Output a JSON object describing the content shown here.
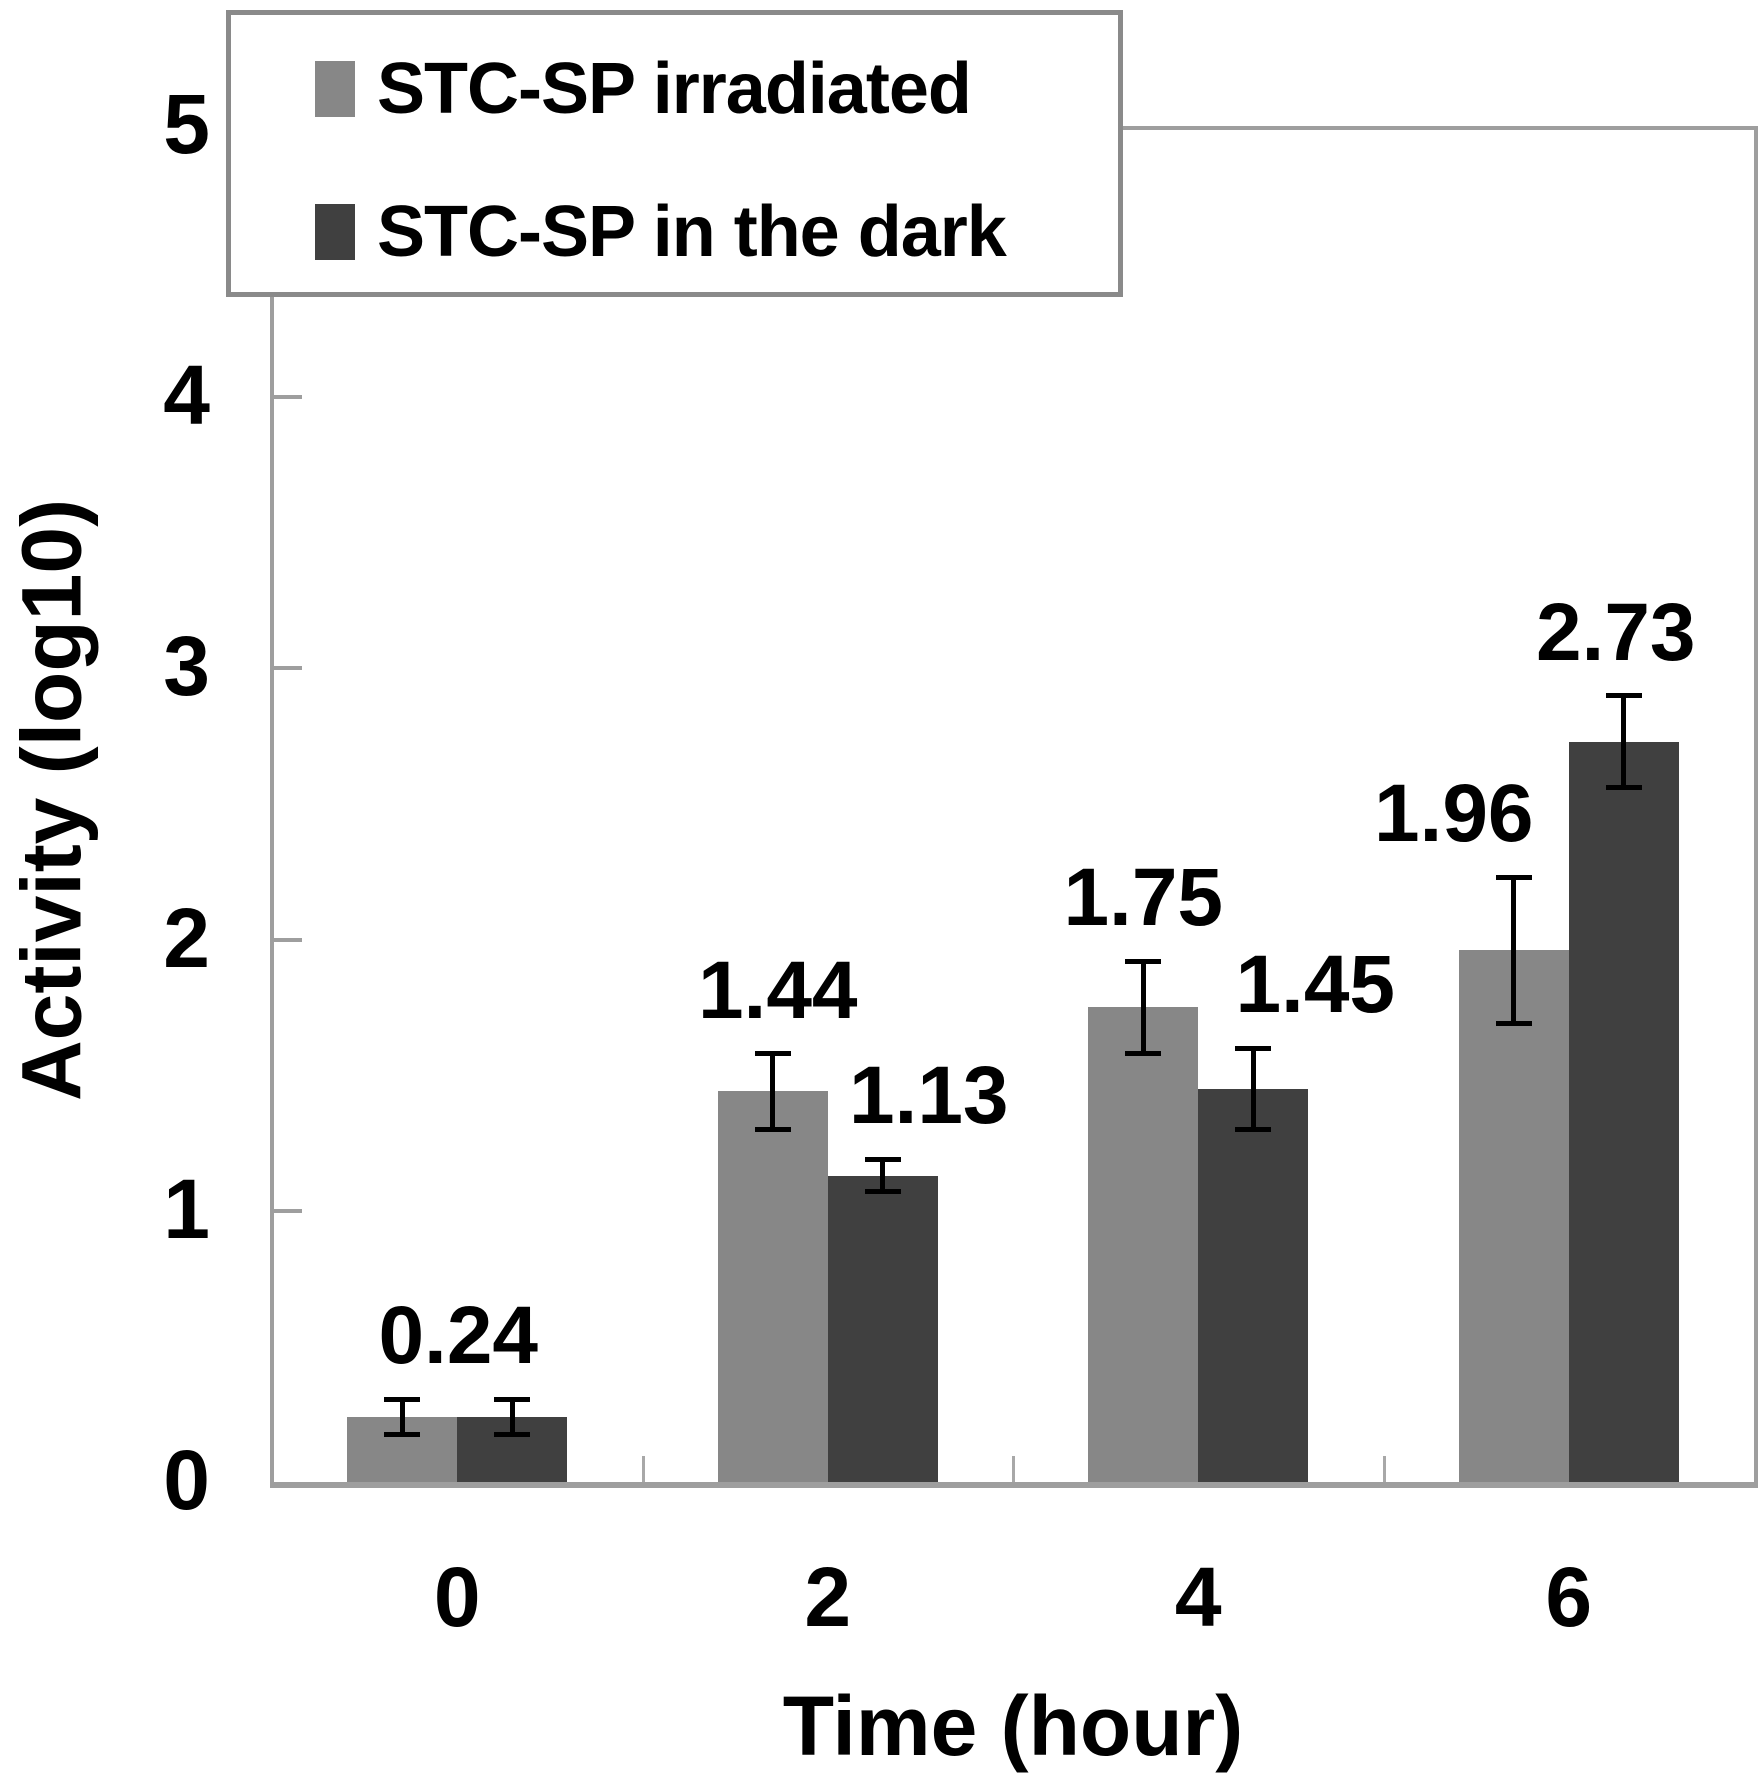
{
  "chart_data": {
    "type": "bar",
    "title": "",
    "xlabel": "Time (hour)",
    "ylabel": "Activity (log10)",
    "categories": [
      "0",
      "2",
      "4",
      "6"
    ],
    "ylim": [
      0,
      5
    ],
    "yticks": [
      0,
      1,
      2,
      3,
      4,
      5
    ],
    "grid": false,
    "legend_position": "top-left",
    "axis_color": "#9e9e9e",
    "series": [
      {
        "name": "STC-SP irradiated",
        "color": "#878787",
        "values": [
          0.24,
          1.44,
          1.75,
          1.96
        ],
        "errors": [
          0.065,
          0.14,
          0.17,
          0.27
        ],
        "labels": [
          "0.24",
          "1.44",
          "1.75",
          "1.96"
        ],
        "label_dx": [
          56,
          5,
          0,
          -60
        ]
      },
      {
        "name": "STC-SP in the dark",
        "color": "#404040",
        "values": [
          0.24,
          1.13,
          1.45,
          2.73
        ],
        "errors": [
          0.065,
          0.06,
          0.15,
          0.17
        ],
        "labels": [
          "",
          "1.13",
          "1.45",
          "2.73"
        ],
        "label_dx": [
          0,
          46,
          62,
          -8
        ]
      }
    ]
  },
  "legend": {
    "items": [
      {
        "label": "STC-SP irradiated",
        "color": "#878787"
      },
      {
        "label": "STC-SP in the dark",
        "color": "#404040"
      }
    ]
  },
  "axes": {
    "x_title": "Time (hour)",
    "y_title": "Activity (log10)"
  }
}
